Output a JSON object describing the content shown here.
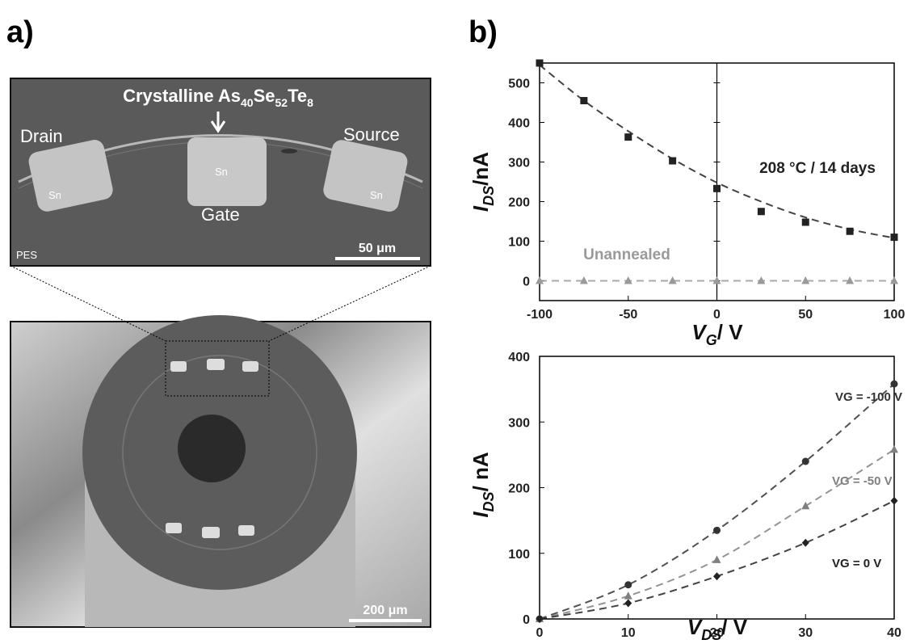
{
  "panels": {
    "a": {
      "label": "a)",
      "annotation": [
        "Crystalline As",
        "40",
        "Se",
        "52",
        "Te",
        "8"
      ],
      "drain": "Drain",
      "source": "Source",
      "gate": "Gate",
      "sn": [
        "Sn",
        "Sn",
        "Sn"
      ],
      "pes": "PES",
      "scale_top": "50 μm",
      "scale_bottom": "200 μm"
    },
    "b": {
      "label": "b)"
    }
  },
  "chart_data": [
    {
      "type": "scatter",
      "x_label": [
        "V",
        "G",
        "/ V"
      ],
      "y_label": [
        "I",
        "DS",
        "/nA"
      ],
      "xlim": [
        -100,
        100
      ],
      "ylim": [
        -50,
        550
      ],
      "xticks": [
        -100,
        -50,
        0,
        50,
        100
      ],
      "yticks": [
        0,
        100,
        200,
        300,
        400,
        500
      ],
      "series": [
        {
          "name": "208 °C / 14 days",
          "color": "#222222",
          "marker": "square",
          "x": [
            -100,
            -75,
            -50,
            -25,
            0,
            25,
            50,
            75,
            100
          ],
          "values": [
            550,
            455,
            363,
            303,
            233,
            175,
            148,
            125,
            110
          ],
          "fit": [
            545,
            455,
            378,
            308,
            248,
            200,
            160,
            130,
            108
          ]
        },
        {
          "name": "Unannealed",
          "color": "#9a9a9a",
          "marker": "triangle",
          "x": [
            -100,
            -75,
            -50,
            -25,
            0,
            25,
            50,
            75,
            100
          ],
          "values": [
            0,
            0,
            0,
            0,
            0,
            0,
            0,
            0,
            0
          ],
          "fit": [
            0,
            0,
            0,
            0,
            0,
            0,
            0,
            0,
            0
          ]
        }
      ]
    },
    {
      "type": "scatter",
      "x_label": [
        "V",
        "DS",
        "/ V"
      ],
      "y_label": [
        "I",
        "DS",
        "/ nA"
      ],
      "xlim": [
        0,
        40
      ],
      "ylim": [
        0,
        400
      ],
      "xticks": [
        0,
        10,
        20,
        30,
        40
      ],
      "yticks": [
        0,
        100,
        200,
        300,
        400
      ],
      "series": [
        {
          "name": "VG = -100 V",
          "color": "#333333",
          "marker": "circle",
          "x": [
            0,
            10,
            20,
            30,
            40
          ],
          "values": [
            0,
            52,
            135,
            240,
            358
          ],
          "fit": [
            0,
            52,
            135,
            240,
            358
          ]
        },
        {
          "name": "VG = -50 V",
          "color": "#808080",
          "marker": "triangle",
          "x": [
            0,
            10,
            20,
            30,
            40
          ],
          "values": [
            0,
            35,
            90,
            172,
            258
          ],
          "fit": [
            0,
            35,
            90,
            172,
            258
          ]
        },
        {
          "name": "VG = 0 V",
          "color": "#222222",
          "marker": "diamond",
          "x": [
            0,
            10,
            20,
            30,
            40
          ],
          "values": [
            0,
            24,
            65,
            116,
            180
          ],
          "fit": [
            0,
            24,
            65,
            116,
            180
          ]
        }
      ]
    }
  ]
}
